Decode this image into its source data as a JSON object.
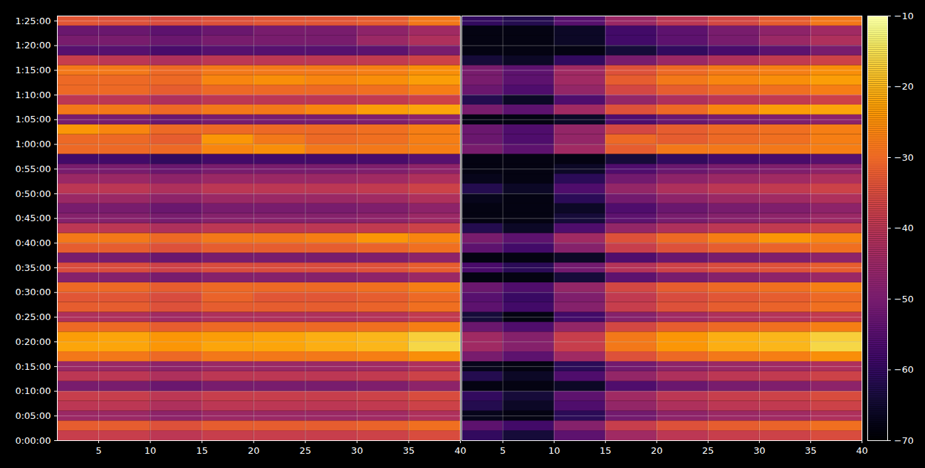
{
  "chart_data": {
    "type": "heatmap",
    "color": "inferno",
    "grid": true,
    "xlim": [
      1,
      40
    ],
    "xticks": [
      5,
      10,
      15,
      20,
      25,
      30,
      35,
      40
    ],
    "ylim": [
      0,
      5160
    ],
    "yticks": [
      {
        "value": 0,
        "label": "0:00:00"
      },
      {
        "value": 300,
        "label": "0:05:00"
      },
      {
        "value": 600,
        "label": "0:10:00"
      },
      {
        "value": 900,
        "label": "0:15:00"
      },
      {
        "value": 1200,
        "label": "0:20:00"
      },
      {
        "value": 1500,
        "label": "0:25:00"
      },
      {
        "value": 1800,
        "label": "0:30:00"
      },
      {
        "value": 2100,
        "label": "0:35:00"
      },
      {
        "value": 2400,
        "label": "0:40:00"
      },
      {
        "value": 2700,
        "label": "0:45:00"
      },
      {
        "value": 3000,
        "label": "0:50:00"
      },
      {
        "value": 3300,
        "label": "0:55:00"
      },
      {
        "value": 3600,
        "label": "1:00:00"
      },
      {
        "value": 3900,
        "label": "1:05:00"
      },
      {
        "value": 4200,
        "label": "1:10:00"
      },
      {
        "value": 4500,
        "label": "1:15:00"
      },
      {
        "value": 4800,
        "label": "1:20:00"
      },
      {
        "value": 5100,
        "label": "1:25:00"
      }
    ],
    "colorbar": {
      "range": [
        -70,
        -10
      ],
      "ticks": [
        {
          "value": -70,
          "label": "−70"
        },
        {
          "value": -60,
          "label": "−60"
        },
        {
          "value": -50,
          "label": "−50"
        },
        {
          "value": -40,
          "label": "−40"
        },
        {
          "value": -30,
          "label": "−30"
        },
        {
          "value": -20,
          "label": "−20"
        },
        {
          "value": -10,
          "label": "−10"
        }
      ]
    },
    "x_edges": [
      1,
      5,
      10,
      15,
      20,
      25,
      30,
      35,
      40
    ],
    "y_edges": [
      0,
      120,
      240,
      360,
      480,
      600,
      720,
      840,
      960,
      1080,
      1200,
      1320,
      1440,
      1560,
      1680,
      1800,
      1920,
      2040,
      2160,
      2280,
      2400,
      2520,
      2640,
      2760,
      2880,
      3000,
      3120,
      3240,
      3360,
      3480,
      3600,
      3720,
      3840,
      3960,
      4080,
      4200,
      4320,
      4440,
      4560,
      4680,
      4800,
      4920,
      5040,
      5160
    ],
    "panels": [
      {
        "cells": [
          [
            -38,
            -38,
            -40,
            -38,
            -38,
            -38,
            -37,
            -35
          ],
          [
            -32,
            -32,
            -34,
            -32,
            -32,
            -32,
            -31,
            -29
          ],
          [
            -45,
            -45,
            -47,
            -45,
            -45,
            -45,
            -44,
            -42
          ],
          [
            -40,
            -40,
            -42,
            -40,
            -40,
            -40,
            -39,
            -37
          ],
          [
            -38,
            -38,
            -40,
            -38,
            -38,
            -38,
            -37,
            -35
          ],
          [
            -50,
            -50,
            -52,
            -50,
            -50,
            -50,
            -49,
            -47
          ],
          [
            -40,
            -40,
            -42,
            -40,
            -40,
            -40,
            -39,
            -37
          ],
          [
            -45,
            -45,
            -47,
            -45,
            -45,
            -45,
            -44,
            -42
          ],
          [
            -28,
            -28,
            -30,
            -28,
            -28,
            -28,
            -27,
            -25
          ],
          [
            -22,
            -22,
            -24,
            -22,
            -22,
            -21,
            -20,
            -16
          ],
          [
            -23,
            -22,
            -24,
            -23,
            -22,
            -21,
            -20,
            -17
          ],
          [
            -30,
            -30,
            -32,
            -30,
            -30,
            -30,
            -29,
            -27
          ],
          [
            -42,
            -42,
            -44,
            -42,
            -42,
            -42,
            -41,
            -39
          ],
          [
            -32,
            -32,
            -34,
            -32,
            -32,
            -32,
            -31,
            -29
          ],
          [
            -33,
            -33,
            -35,
            -31,
            -33,
            -33,
            -32,
            -30
          ],
          [
            -30,
            -30,
            -32,
            -30,
            -30,
            -30,
            -29,
            -27
          ],
          [
            -48,
            -48,
            -50,
            -48,
            -48,
            -48,
            -47,
            -45
          ],
          [
            -35,
            -35,
            -37,
            -35,
            -35,
            -35,
            -34,
            -32
          ],
          [
            -50,
            -50,
            -52,
            -50,
            -50,
            -50,
            -49,
            -47
          ],
          [
            -32,
            -32,
            -34,
            -32,
            -32,
            -32,
            -31,
            -29
          ],
          [
            -28,
            -28,
            -30,
            -28,
            -28,
            -27,
            -24,
            -26
          ],
          [
            -40,
            -40,
            -42,
            -40,
            -40,
            -40,
            -39,
            -37
          ],
          [
            -48,
            -48,
            -50,
            -48,
            -48,
            -48,
            -47,
            -45
          ],
          [
            -50,
            -50,
            -52,
            -50,
            -50,
            -50,
            -49,
            -47
          ],
          [
            -45,
            -45,
            -47,
            -45,
            -45,
            -45,
            -44,
            -42
          ],
          [
            -40,
            -40,
            -42,
            -40,
            -40,
            -40,
            -39,
            -37
          ],
          [
            -45,
            -45,
            -47,
            -45,
            -45,
            -45,
            -44,
            -42
          ],
          [
            -50,
            -50,
            -52,
            -50,
            -50,
            -50,
            -49,
            -47
          ],
          [
            -58,
            -58,
            -60,
            -58,
            -58,
            -58,
            -57,
            -55
          ],
          [
            -30,
            -30,
            -30,
            -26,
            -25,
            -28,
            -28,
            -27
          ],
          [
            -30,
            -30,
            -32,
            -24,
            -28,
            -30,
            -29,
            -27
          ],
          [
            -24,
            -26,
            -30,
            -30,
            -30,
            -30,
            -29,
            -27
          ],
          [
            -50,
            -50,
            -52,
            -50,
            -50,
            -50,
            -49,
            -47
          ],
          [
            -28,
            -28,
            -30,
            -28,
            -28,
            -26,
            -23,
            -22
          ],
          [
            -40,
            -40,
            -42,
            -40,
            -40,
            -40,
            -39,
            -37
          ],
          [
            -30,
            -30,
            -32,
            -30,
            -30,
            -30,
            -29,
            -27
          ],
          [
            -30,
            -30,
            -30,
            -26,
            -25,
            -26,
            -25,
            -23
          ],
          [
            -28,
            -28,
            -30,
            -28,
            -28,
            -28,
            -27,
            -25
          ],
          [
            -38,
            -40,
            -42,
            -40,
            -40,
            -40,
            -39,
            -37
          ],
          [
            -55,
            -55,
            -57,
            -55,
            -55,
            -55,
            -54,
            -50
          ],
          [
            -50,
            -50,
            -52,
            -50,
            -50,
            -50,
            -45,
            -42
          ],
          [
            -52,
            -52,
            -54,
            -52,
            -50,
            -50,
            -47,
            -44
          ],
          [
            -33,
            -34,
            -35,
            -34,
            -33,
            -33,
            -32,
            -28
          ]
        ]
      },
      {
        "cells": [
          [
            -60,
            -64,
            -54,
            -44,
            -40,
            -38,
            -37,
            -35
          ],
          [
            -54,
            -58,
            -48,
            -38,
            -34,
            -32,
            -31,
            -29
          ],
          [
            -67,
            -68,
            -61,
            -51,
            -47,
            -45,
            -44,
            -42
          ],
          [
            -62,
            -66,
            -56,
            -46,
            -42,
            -40,
            -39,
            -37
          ],
          [
            -60,
            -64,
            -54,
            -44,
            -40,
            -38,
            -37,
            -35
          ],
          [
            -68,
            -68,
            -66,
            -56,
            -52,
            -50,
            -49,
            -47
          ],
          [
            -62,
            -66,
            -56,
            -46,
            -42,
            -40,
            -39,
            -37
          ],
          [
            -67,
            -68,
            -61,
            -51,
            -47,
            -45,
            -44,
            -42
          ],
          [
            -50,
            -54,
            -44,
            -34,
            -30,
            -28,
            -27,
            -25
          ],
          [
            -44,
            -48,
            -38,
            -28,
            -24,
            -21,
            -20,
            -16
          ],
          [
            -44,
            -48,
            -38,
            -28,
            -24,
            -21,
            -20,
            -17
          ],
          [
            -52,
            -56,
            -46,
            -36,
            -32,
            -30,
            -29,
            -27
          ],
          [
            -64,
            -68,
            -58,
            -48,
            -44,
            -42,
            -41,
            -39
          ],
          [
            -54,
            -58,
            -48,
            -38,
            -34,
            -32,
            -31,
            -29
          ],
          [
            -55,
            -59,
            -49,
            -39,
            -35,
            -33,
            -32,
            -30
          ],
          [
            -52,
            -56,
            -46,
            -36,
            -32,
            -30,
            -29,
            -27
          ],
          [
            -68,
            -68,
            -64,
            -54,
            -50,
            -48,
            -47,
            -45
          ],
          [
            -57,
            -61,
            -51,
            -41,
            -37,
            -35,
            -34,
            -32
          ],
          [
            -68,
            -68,
            -66,
            -56,
            -52,
            -50,
            -49,
            -47
          ],
          [
            -54,
            -58,
            -48,
            -38,
            -34,
            -32,
            -31,
            -29
          ],
          [
            -50,
            -54,
            -44,
            -34,
            -30,
            -27,
            -24,
            -26
          ],
          [
            -62,
            -66,
            -56,
            -46,
            -42,
            -40,
            -39,
            -37
          ],
          [
            -68,
            -68,
            -64,
            -54,
            -50,
            -48,
            -47,
            -45
          ],
          [
            -68,
            -68,
            -66,
            -56,
            -52,
            -50,
            -49,
            -47
          ],
          [
            -67,
            -68,
            -61,
            -51,
            -47,
            -45,
            -44,
            -42
          ],
          [
            -62,
            -66,
            -56,
            -46,
            -42,
            -40,
            -39,
            -37
          ],
          [
            -67,
            -68,
            -61,
            -51,
            -47,
            -45,
            -44,
            -42
          ],
          [
            -68,
            -68,
            -66,
            -56,
            -52,
            -50,
            -49,
            -47
          ],
          [
            -68,
            -68,
            -68,
            -64,
            -60,
            -58,
            -57,
            -55
          ],
          [
            -50,
            -54,
            -44,
            -32,
            -28,
            -28,
            -28,
            -27
          ],
          [
            -52,
            -56,
            -46,
            -30,
            -32,
            -30,
            -29,
            -27
          ],
          [
            -52,
            -56,
            -46,
            -36,
            -32,
            -30,
            -29,
            -27
          ],
          [
            -68,
            -68,
            -66,
            -56,
            -52,
            -50,
            -49,
            -47
          ],
          [
            -50,
            -54,
            -44,
            -34,
            -30,
            -26,
            -23,
            -22
          ],
          [
            -62,
            -66,
            -56,
            -46,
            -42,
            -40,
            -39,
            -37
          ],
          [
            -52,
            -56,
            -46,
            -36,
            -32,
            -30,
            -29,
            -27
          ],
          [
            -50,
            -54,
            -44,
            -32,
            -28,
            -26,
            -25,
            -23
          ],
          [
            -50,
            -54,
            -44,
            -34,
            -30,
            -28,
            -27,
            -25
          ],
          [
            -64,
            -66,
            -60,
            -50,
            -45,
            -42,
            -39,
            -37
          ],
          [
            -68,
            -68,
            -68,
            -64,
            -60,
            -57,
            -54,
            -50
          ],
          [
            -68,
            -68,
            -66,
            -58,
            -54,
            -50,
            -45,
            -42
          ],
          [
            -68,
            -68,
            -66,
            -58,
            -54,
            -50,
            -47,
            -44
          ],
          [
            -60,
            -62,
            -55,
            -45,
            -40,
            -36,
            -32,
            -28
          ]
        ]
      }
    ]
  }
}
